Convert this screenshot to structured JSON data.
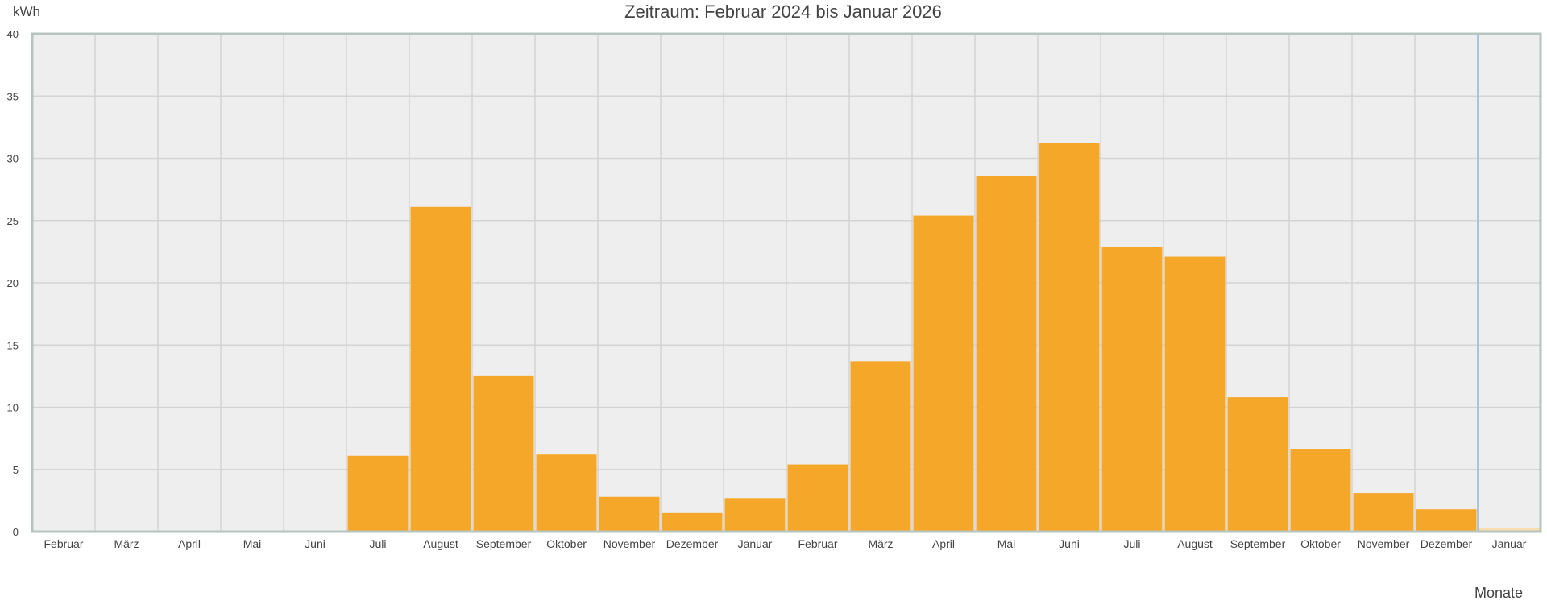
{
  "chart_data": {
    "type": "bar",
    "title": "Zeitraum: Februar 2024 bis Januar 2026",
    "ylabel": "kWh",
    "xlabel": "Monate",
    "ylim": [
      0,
      40
    ],
    "yticks": [
      0,
      5,
      10,
      15,
      20,
      25,
      30,
      35,
      40
    ],
    "grid": true,
    "categories": [
      "Februar",
      "März",
      "April",
      "Mai",
      "Juni",
      "Juli",
      "August",
      "September",
      "Oktober",
      "November",
      "Dezember",
      "Januar",
      "Februar",
      "März",
      "April",
      "Mai",
      "Juni",
      "Juli",
      "August",
      "September",
      "Oktober",
      "November",
      "Dezember",
      "Januar"
    ],
    "series": [
      {
        "values": [
          0,
          0,
          0,
          0,
          0,
          6.1,
          26.1,
          12.5,
          6.2,
          2.8,
          1.5,
          2.7,
          5.4,
          13.7,
          25.4,
          28.6,
          31.2,
          22.9,
          22.1,
          10.8,
          6.6,
          3.1,
          1.8,
          0.3
        ],
        "color": "#f5a72a",
        "current_period_color": "#f9ddb0"
      }
    ],
    "colors": {
      "plot_background": "#eeeeee",
      "grid": "#d4d4d4",
      "frame": "#b5c4be",
      "current_marker": "#a9c4dc",
      "text": "#444444"
    }
  }
}
